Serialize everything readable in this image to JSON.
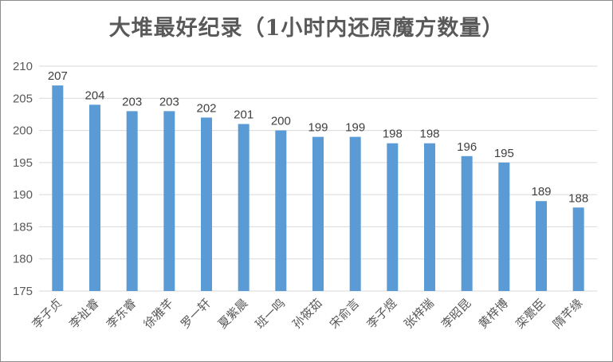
{
  "chart_data": {
    "type": "bar",
    "title": "大堆最好纪录（1小时内还原魔方数量）",
    "xlabel": "",
    "ylabel": "",
    "ylim": [
      175,
      210
    ],
    "yticks": [
      175,
      180,
      185,
      190,
      195,
      200,
      205,
      210
    ],
    "grid": true,
    "legend": "none",
    "categories": [
      "李子贞",
      "李祉睿",
      "李东睿",
      "徐雅芊",
      "罗一轩",
      "夏紫晨",
      "班一鸣",
      "孙筱茹",
      "宋俞言",
      "李子煜",
      "张梓瑞",
      "李昭昆",
      "黄梓博",
      "栾甍臣",
      "隋芊缘"
    ],
    "values": [
      207,
      204,
      203,
      203,
      202,
      201,
      200,
      199,
      199,
      198,
      198,
      196,
      195,
      189,
      188
    ],
    "colors": {
      "bar": "#5b9bd5",
      "grid": "#d9d9d9",
      "text": "#595959"
    }
  }
}
